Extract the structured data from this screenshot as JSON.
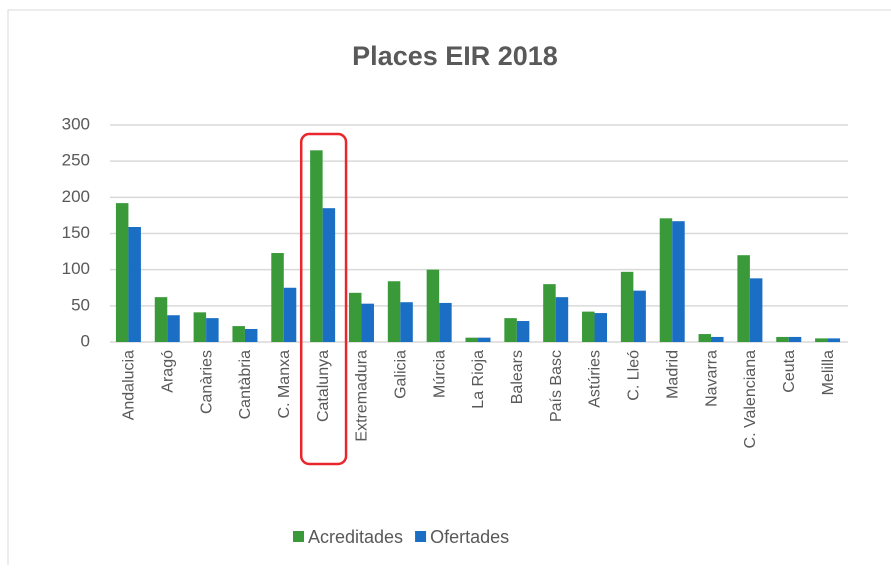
{
  "chart_data": {
    "type": "bar",
    "title": "Places EIR 2018",
    "categories": [
      "Andalucia",
      "Aragó",
      "Canàries",
      "Cantàbria",
      "C. Manxa",
      "Catalunya",
      "Extremadura",
      "Galicia",
      "Múrcia",
      "La Rioja",
      "Balears",
      "País Basc",
      "Astúries",
      "C. Lleó",
      "Madrid",
      "Navarra",
      "C. Valenciana",
      "Ceuta",
      "Melilla"
    ],
    "series": [
      {
        "name": "Acreditades",
        "color": "#3a9a3a",
        "values": [
          192,
          62,
          41,
          22,
          123,
          265,
          68,
          84,
          100,
          6,
          33,
          80,
          42,
          97,
          171,
          11,
          120,
          7,
          5
        ]
      },
      {
        "name": "Ofertades",
        "color": "#1a6fc4",
        "values": [
          159,
          37,
          33,
          18,
          75,
          185,
          53,
          55,
          54,
          6,
          29,
          62,
          40,
          71,
          167,
          7,
          88,
          7,
          5
        ]
      }
    ],
    "ylim": [
      0,
      300
    ],
    "yticks": [
      0,
      50,
      100,
      150,
      200,
      250,
      300
    ],
    "grid": true,
    "legend": "bottom"
  }
}
